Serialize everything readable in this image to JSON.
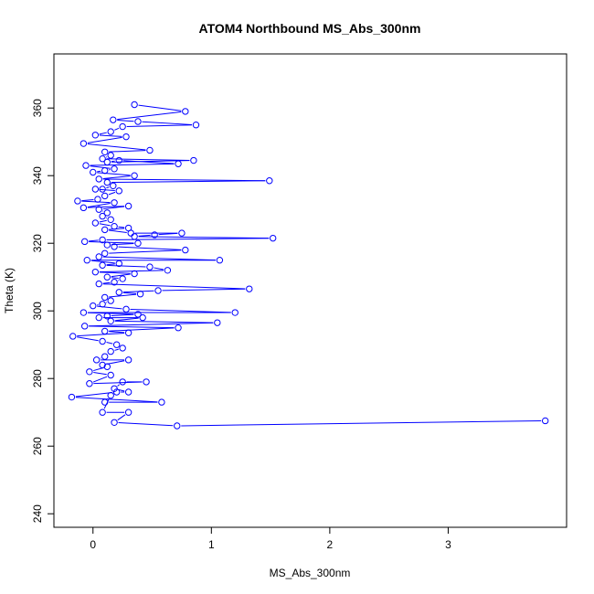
{
  "chart_data": {
    "type": "line",
    "title": "ATOM4 Northbound MS_Abs_300nm",
    "xlabel": "MS_Abs_300nm",
    "ylabel": "Theta (K)",
    "xlim": [
      -0.33,
      4.0
    ],
    "ylim": [
      236,
      376
    ],
    "xticks": [
      0,
      1,
      2,
      3
    ],
    "yticks": [
      240,
      260,
      280,
      300,
      320,
      340,
      360
    ],
    "grid": false,
    "marker": "open-circle",
    "series": [
      {
        "color": "#0000ff",
        "points": [
          [
            0.35,
            361
          ],
          [
            0.78,
            359
          ],
          [
            0.17,
            356.5
          ],
          [
            0.38,
            356
          ],
          [
            0.87,
            355
          ],
          [
            0.25,
            354.5
          ],
          [
            0.15,
            353
          ],
          [
            0.02,
            352
          ],
          [
            0.28,
            351.5
          ],
          [
            -0.08,
            349.5
          ],
          [
            0.48,
            347.5
          ],
          [
            0.1,
            347
          ],
          [
            0.15,
            346
          ],
          [
            0.08,
            345
          ],
          [
            0.85,
            344.5
          ],
          [
            0.12,
            344
          ],
          [
            0.22,
            344.5
          ],
          [
            0.72,
            343.5
          ],
          [
            -0.06,
            343
          ],
          [
            0.18,
            342
          ],
          [
            0.1,
            341.5
          ],
          [
            0.0,
            341
          ],
          [
            0.35,
            340
          ],
          [
            0.05,
            339
          ],
          [
            1.49,
            338.5
          ],
          [
            0.12,
            338
          ],
          [
            0.17,
            337
          ],
          [
            0.08,
            336
          ],
          [
            0.02,
            336
          ],
          [
            0.22,
            335.5
          ],
          [
            0.1,
            334
          ],
          [
            0.04,
            333
          ],
          [
            -0.13,
            332.5
          ],
          [
            0.18,
            332
          ],
          [
            -0.08,
            330.5
          ],
          [
            0.3,
            331
          ],
          [
            0.05,
            330
          ],
          [
            0.12,
            329
          ],
          [
            0.08,
            328
          ],
          [
            0.15,
            327
          ],
          [
            0.02,
            326
          ],
          [
            0.18,
            325
          ],
          [
            0.3,
            324.5
          ],
          [
            0.1,
            324
          ],
          [
            0.32,
            323
          ],
          [
            0.75,
            323
          ],
          [
            0.52,
            322.5
          ],
          [
            0.35,
            322
          ],
          [
            1.52,
            321.5
          ],
          [
            0.08,
            321
          ],
          [
            -0.07,
            320.5
          ],
          [
            0.38,
            320
          ],
          [
            0.12,
            319.5
          ],
          [
            0.18,
            319
          ],
          [
            0.78,
            318
          ],
          [
            0.1,
            317
          ],
          [
            0.05,
            316
          ],
          [
            1.07,
            315
          ],
          [
            -0.05,
            315
          ],
          [
            0.22,
            314
          ],
          [
            0.08,
            313.5
          ],
          [
            0.48,
            313
          ],
          [
            0.63,
            312
          ],
          [
            0.02,
            311.5
          ],
          [
            0.35,
            311
          ],
          [
            0.12,
            310
          ],
          [
            0.25,
            309.5
          ],
          [
            0.18,
            308.5
          ],
          [
            0.05,
            308
          ],
          [
            1.32,
            306.5
          ],
          [
            0.55,
            306
          ],
          [
            0.22,
            305.5
          ],
          [
            0.4,
            305
          ],
          [
            0.1,
            304
          ],
          [
            0.15,
            303
          ],
          [
            0.08,
            302
          ],
          [
            0.0,
            301.5
          ],
          [
            0.28,
            300.5
          ],
          [
            1.2,
            299.5
          ],
          [
            -0.08,
            299.5
          ],
          [
            0.38,
            299
          ],
          [
            0.12,
            298.5
          ],
          [
            0.05,
            298
          ],
          [
            0.42,
            298
          ],
          [
            0.15,
            297
          ],
          [
            1.05,
            296.5
          ],
          [
            -0.07,
            295.5
          ],
          [
            0.72,
            295
          ],
          [
            0.1,
            294
          ],
          [
            0.3,
            293.5
          ],
          [
            -0.17,
            292.5
          ],
          [
            0.08,
            291
          ],
          [
            0.2,
            290
          ],
          [
            0.25,
            289
          ],
          [
            0.15,
            288
          ],
          [
            0.1,
            286.5
          ],
          [
            0.03,
            285.5
          ],
          [
            0.3,
            285.5
          ],
          [
            0.08,
            284
          ],
          [
            0.12,
            283.5
          ],
          [
            -0.03,
            282
          ],
          [
            0.15,
            281
          ],
          [
            -0.03,
            278.5
          ],
          [
            0.45,
            279
          ],
          [
            0.25,
            279
          ],
          [
            0.18,
            277
          ],
          [
            0.3,
            276
          ],
          [
            0.2,
            276
          ],
          [
            -0.18,
            274.5
          ],
          [
            0.58,
            273
          ],
          [
            0.1,
            273
          ],
          [
            0.15,
            275
          ],
          [
            0.08,
            270
          ],
          [
            0.3,
            270
          ],
          [
            0.18,
            267
          ],
          [
            0.71,
            266
          ],
          [
            3.82,
            267.5
          ]
        ]
      }
    ]
  }
}
